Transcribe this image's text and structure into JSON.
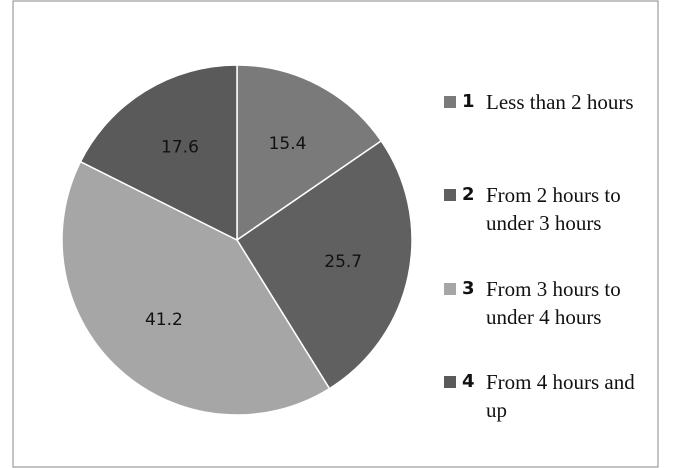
{
  "chart_data": {
    "type": "pie",
    "legend_keys": [
      "1",
      "2",
      "3",
      "4"
    ],
    "categories": [
      "Less than 2 hours",
      "From 2 hours to under 3 hours",
      "From 3 hours to under 4 hours",
      "From 4 hours and up"
    ],
    "values": [
      15.4,
      25.7,
      41.2,
      17.6
    ],
    "colors": [
      "#7a7a7a",
      "#606060",
      "#a6a6a6",
      "#5a5a5a"
    ],
    "legend": "right"
  }
}
